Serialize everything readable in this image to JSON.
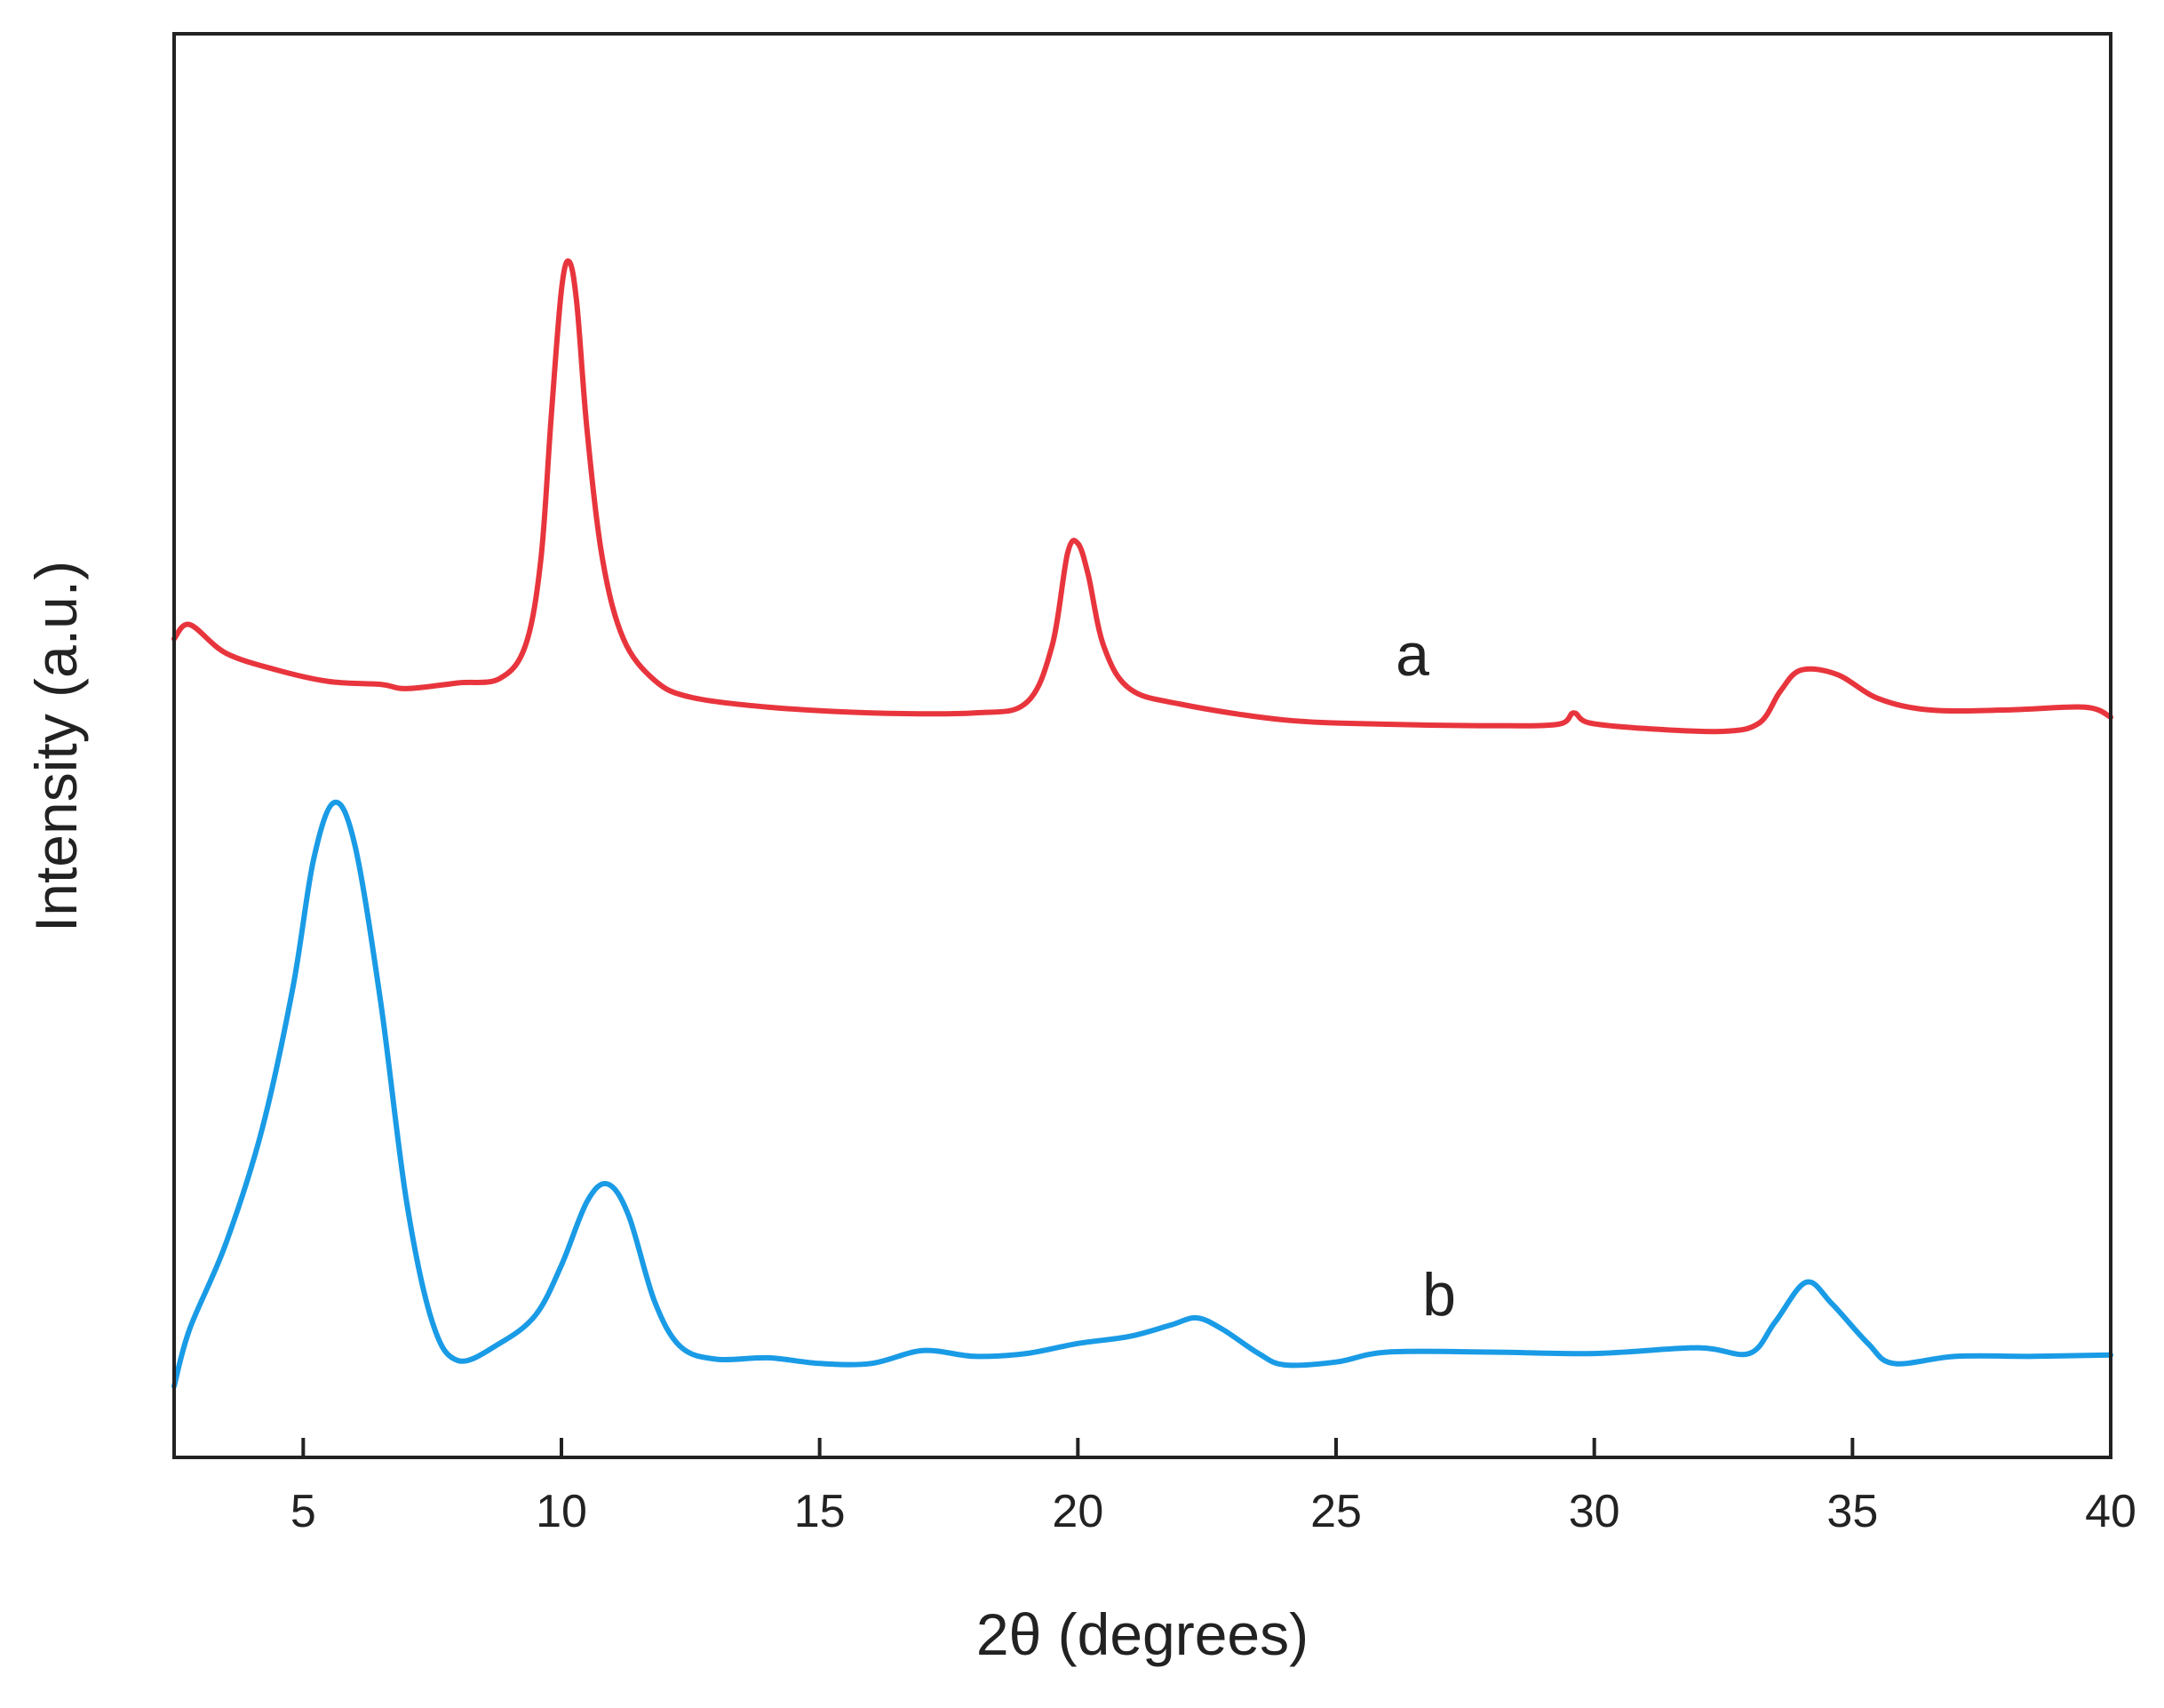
{
  "chart_data": {
    "type": "line",
    "title": "",
    "xlabel": "2θ (degrees)",
    "ylabel": "Intensity (a.u.)",
    "xlim": [
      2.5,
      40
    ],
    "ylim": [
      0,
      100
    ],
    "xticks": [
      5,
      10,
      15,
      20,
      25,
      30,
      35,
      40
    ],
    "yticks": [],
    "grid": false,
    "legend": "none",
    "series": [
      {
        "name": "a",
        "color": "#e8353d",
        "x": [
          2.5,
          2.8,
          3.5,
          4.5,
          5.5,
          6.5,
          7.0,
          8.0,
          8.8,
          9.3,
          9.6,
          9.8,
          10.0,
          10.15,
          10.3,
          10.5,
          10.8,
          11.2,
          11.8,
          12.5,
          14.0,
          16.0,
          18.0,
          19.0,
          19.5,
          19.8,
          20.0,
          20.2,
          20.5,
          21.0,
          22.0,
          24.0,
          26.0,
          28.0,
          29.3,
          29.6,
          29.9,
          31.0,
          32.5,
          33.2,
          33.6,
          34.0,
          34.7,
          35.5,
          36.5,
          38.0,
          39.5,
          40.0
        ],
        "values": [
          57.5,
          58.5,
          56.5,
          55.3,
          54.5,
          54.3,
          54.0,
          54.4,
          54.7,
          57.0,
          63.0,
          73.0,
          82.0,
          84.0,
          81.0,
          72.0,
          63.0,
          57.5,
          54.6,
          53.4,
          52.7,
          52.3,
          52.3,
          53.0,
          57.0,
          63.5,
          64.2,
          62.0,
          57.0,
          54.0,
          52.9,
          51.8,
          51.5,
          51.4,
          51.5,
          52.3,
          51.6,
          51.2,
          51.0,
          51.6,
          53.8,
          55.3,
          55.0,
          53.3,
          52.5,
          52.5,
          52.7,
          52.0
        ]
      },
      {
        "name": "b",
        "color": "#1a9be6",
        "x": [
          2.5,
          2.8,
          3.5,
          4.2,
          4.8,
          5.2,
          5.6,
          6.0,
          6.5,
          7.0,
          7.5,
          8.0,
          8.8,
          9.5,
          10.0,
          10.5,
          10.9,
          11.3,
          11.8,
          12.3,
          13.0,
          14.0,
          15.0,
          16.0,
          17.0,
          18.0,
          19.0,
          20.0,
          21.0,
          21.8,
          22.3,
          22.8,
          23.5,
          24.0,
          25.0,
          26.0,
          28.0,
          30.0,
          32.0,
          33.0,
          33.5,
          34.1,
          34.6,
          35.3,
          35.8,
          37.0,
          38.5,
          40.0
        ],
        "values": [
          5.0,
          9.0,
          15.0,
          23.0,
          33.0,
          42.0,
          46.0,
          43.0,
          32.0,
          18.0,
          9.5,
          6.8,
          8.0,
          10.0,
          13.5,
          18.0,
          19.2,
          17.0,
          11.0,
          7.8,
          6.9,
          7.0,
          6.6,
          6.6,
          7.5,
          7.1,
          7.3,
          8.0,
          8.5,
          9.3,
          9.8,
          9.0,
          7.3,
          6.5,
          6.7,
          7.4,
          7.4,
          7.3,
          7.7,
          7.3,
          9.5,
          12.3,
          10.8,
          8.0,
          6.6,
          7.1,
          7.1,
          7.2
        ]
      }
    ]
  }
}
